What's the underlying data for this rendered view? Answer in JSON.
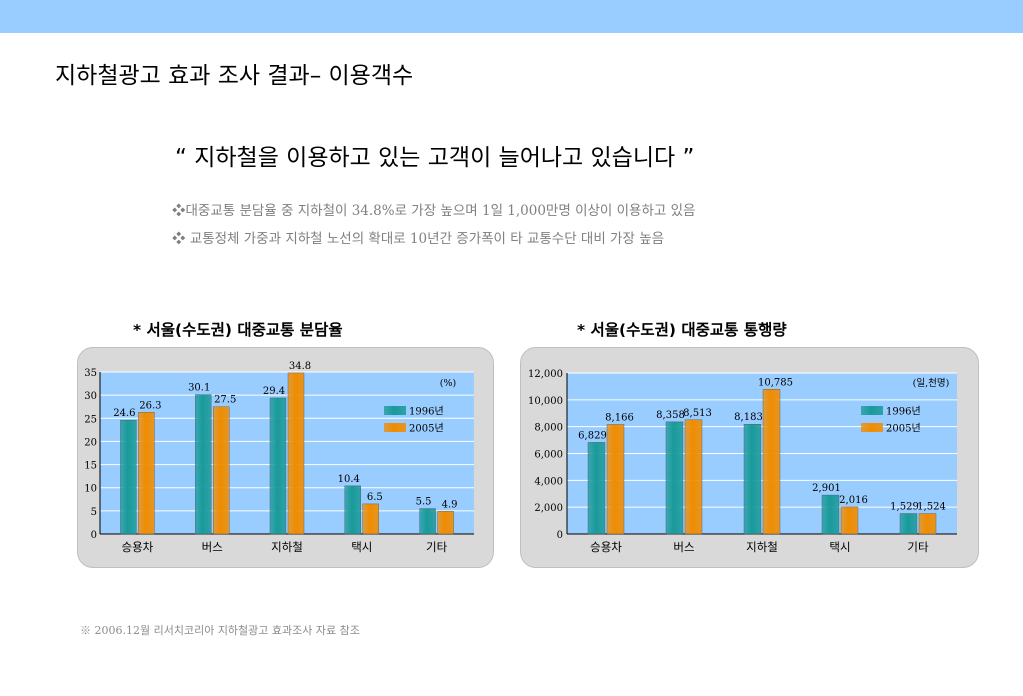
{
  "page": {
    "title": "지하철광고 효과 조사 결과– 이용객수",
    "headline": "“ 지하철을 이용하고 있는 고객이 늘어나고 있습니다 ”",
    "bullets": [
      "❖대중교통 분담율 중 지하철이 34.8%로 가장 높으며 1일 1,000만명 이상이 이용하고 있음",
      "❖ 교통정체 가중과 지하철 노선의 확대로 10년간 증가폭이 타 교통수단 대비 가장 높음"
    ],
    "footnote": "※ 2006.12월 리서치코리아 지하철광고 효과조사 자료 참조"
  },
  "colors": {
    "bar1996": "#1a9a9a",
    "bar2005": "#f08c00",
    "plot_bg": "#99ccff",
    "topbar": "#99ccff"
  },
  "chart_data": [
    {
      "type": "bar",
      "title": "* 서울(수도권) 대중교통 분담율",
      "unit": "(%)",
      "categories": [
        "승용차",
        "버스",
        "지하철",
        "택시",
        "기타"
      ],
      "series": [
        {
          "name": "1996년",
          "values": [
            24.6,
            30.1,
            29.4,
            10.4,
            5.5
          ],
          "labels": [
            "24.6",
            "30.1",
            "29.4",
            "10.4",
            "5.5"
          ]
        },
        {
          "name": "2005년",
          "values": [
            26.3,
            27.5,
            34.8,
            6.5,
            4.9
          ],
          "labels": [
            "26.3",
            "27.5",
            "34.8",
            "6.5",
            "4.9"
          ]
        }
      ],
      "ylim": [
        0,
        35
      ],
      "yticks": [
        0,
        5,
        10,
        15,
        20,
        25,
        30,
        35
      ],
      "ytick_labels": [
        "0",
        "5",
        "10",
        "15",
        "20",
        "25",
        "30",
        "35"
      ],
      "grid": true,
      "legend": "right"
    },
    {
      "type": "bar",
      "title": "* 서울(수도권) 대중교통 통행량",
      "unit": "(일,천명)",
      "categories": [
        "승용차",
        "버스",
        "지하철",
        "택시",
        "기타"
      ],
      "series": [
        {
          "name": "1996년",
          "values": [
            6829,
            8358,
            8183,
            2901,
            1529
          ],
          "labels": [
            "6,829",
            "8,358",
            "8,183",
            "2,901",
            "1,529"
          ]
        },
        {
          "name": "2005년",
          "values": [
            8166,
            8513,
            10785,
            2016,
            1524
          ],
          "labels": [
            "8,166",
            "8,513",
            "10,785",
            "2,016",
            "1,524"
          ]
        }
      ],
      "ylim": [
        0,
        12000
      ],
      "yticks": [
        0,
        2000,
        4000,
        6000,
        8000,
        10000,
        12000
      ],
      "ytick_labels": [
        "0",
        "2,000",
        "4,000",
        "6,000",
        "8,000",
        "10,000",
        "12,000"
      ],
      "grid": true,
      "legend": "right"
    }
  ]
}
